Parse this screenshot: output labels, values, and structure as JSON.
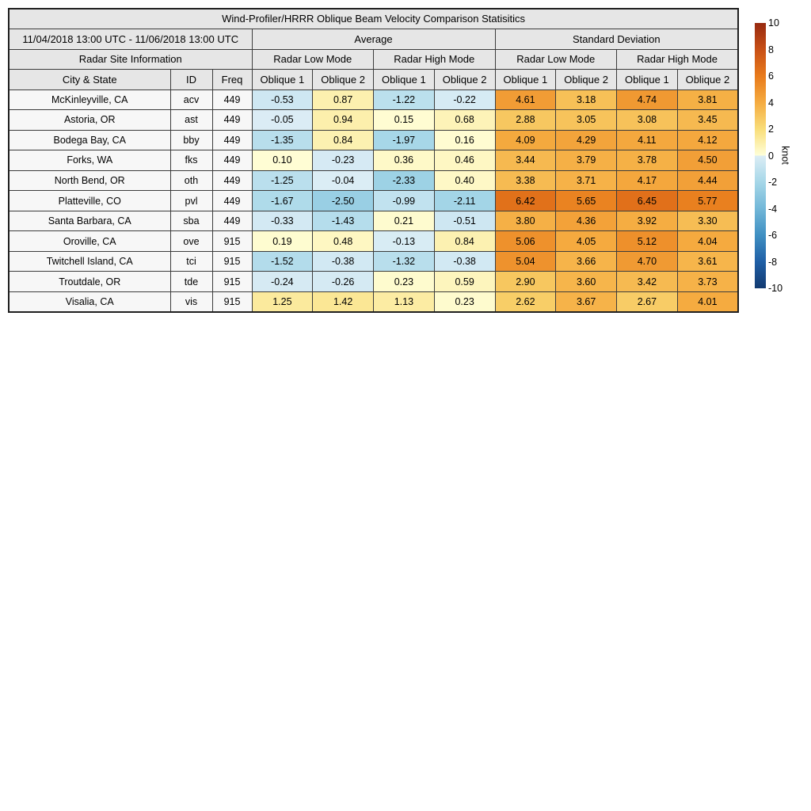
{
  "title": "Wind-Profiler/HRRR Oblique Beam Velocity Comparison Statisitics",
  "header": {
    "date_range": "11/04/2018 13:00 UTC - 11/06/2018 13:00 UTC",
    "group_average": "Average",
    "group_std": "Standard Deviation",
    "site_info": "Radar Site Information",
    "mode_low": "Radar Low Mode",
    "mode_high": "Radar High Mode",
    "col_city": "City & State",
    "col_id": "ID",
    "col_freq": "Freq",
    "col_oblique1": "Oblique 1",
    "col_oblique2": "Oblique 2"
  },
  "palette": {
    "header_bg": "#e6e6e6",
    "label_bg": "#f7f7f7",
    "inner_border": "#3c3c3c",
    "outer_border": "#1f1f1f",
    "text": "#000000"
  },
  "colorbar": {
    "label": "knot",
    "vmin": -10,
    "vmax": 10,
    "ticks": [
      10,
      8,
      6,
      4,
      2,
      0,
      -2,
      -4,
      -6,
      -8,
      -10
    ],
    "anchors_positive": [
      [
        0,
        "#ffffd9"
      ],
      [
        2,
        "#f9dd79"
      ],
      [
        4,
        "#f5ab40"
      ],
      [
        6,
        "#e87a1b"
      ],
      [
        8,
        "#c84f16"
      ],
      [
        10,
        "#972a10"
      ]
    ],
    "anchors_negative": [
      [
        0,
        "#dcedf5"
      ],
      [
        -2,
        "#a6d7e8"
      ],
      [
        -4,
        "#72b7d8"
      ],
      [
        -6,
        "#3f8fc2"
      ],
      [
        -8,
        "#1f5fa6"
      ],
      [
        -10,
        "#123a70"
      ]
    ]
  },
  "chart_data": {
    "type": "table",
    "title": "Wind-Profiler/HRRR Oblique Beam Velocity Comparison Statisitics",
    "subtitle": "11/04/2018 13:00 UTC - 11/06/2018 13:00 UTC",
    "value_unit": "knot",
    "color_scale_range": [
      -10,
      10
    ],
    "value_columns": [
      "Average Radar Low Mode Oblique 1",
      "Average Radar Low Mode Oblique 2",
      "Average Radar High Mode Oblique 1",
      "Average Radar High Mode Oblique 2",
      "Standard Deviation Radar Low Mode Oblique 1",
      "Standard Deviation Radar Low Mode Oblique 2",
      "Standard Deviation Radar High Mode Oblique 1",
      "Standard Deviation Radar High Mode Oblique 2"
    ],
    "rows": [
      {
        "city": "McKinleyville, CA",
        "id": "acv",
        "freq": 449,
        "values": [
          -0.53,
          0.87,
          -1.22,
          -0.22,
          4.61,
          3.18,
          4.74,
          3.81
        ]
      },
      {
        "city": "Astoria, OR",
        "id": "ast",
        "freq": 449,
        "values": [
          -0.05,
          0.94,
          0.15,
          0.68,
          2.88,
          3.05,
          3.08,
          3.45
        ]
      },
      {
        "city": "Bodega Bay, CA",
        "id": "bby",
        "freq": 449,
        "values": [
          -1.35,
          0.84,
          -1.97,
          0.16,
          4.09,
          4.29,
          4.11,
          4.12
        ]
      },
      {
        "city": "Forks, WA",
        "id": "fks",
        "freq": 449,
        "values": [
          0.1,
          -0.23,
          0.36,
          0.46,
          3.44,
          3.79,
          3.78,
          4.5
        ]
      },
      {
        "city": "North Bend, OR",
        "id": "oth",
        "freq": 449,
        "values": [
          -1.25,
          -0.04,
          -2.33,
          0.4,
          3.38,
          3.71,
          4.17,
          4.44
        ]
      },
      {
        "city": "Platteville, CO",
        "id": "pvl",
        "freq": 449,
        "values": [
          -1.67,
          -2.5,
          -0.99,
          -2.11,
          6.42,
          5.65,
          6.45,
          5.77
        ]
      },
      {
        "city": "Santa Barbara, CA",
        "id": "sba",
        "freq": 449,
        "values": [
          -0.33,
          -1.43,
          0.21,
          -0.51,
          3.8,
          4.36,
          3.92,
          3.3
        ]
      },
      {
        "city": "Oroville, CA",
        "id": "ove",
        "freq": 915,
        "values": [
          0.19,
          0.48,
          -0.13,
          0.84,
          5.06,
          4.05,
          5.12,
          4.04
        ]
      },
      {
        "city": "Twitchell Island, CA",
        "id": "tci",
        "freq": 915,
        "values": [
          -1.52,
          -0.38,
          -1.32,
          -0.38,
          5.04,
          3.66,
          4.7,
          3.61
        ]
      },
      {
        "city": "Troutdale, OR",
        "id": "tde",
        "freq": 915,
        "values": [
          -0.24,
          -0.26,
          0.23,
          0.59,
          2.9,
          3.6,
          3.42,
          3.73
        ]
      },
      {
        "city": "Visalia, CA",
        "id": "vis",
        "freq": 915,
        "values": [
          1.25,
          1.42,
          1.13,
          0.23,
          2.62,
          3.67,
          2.67,
          4.01
        ]
      }
    ]
  }
}
